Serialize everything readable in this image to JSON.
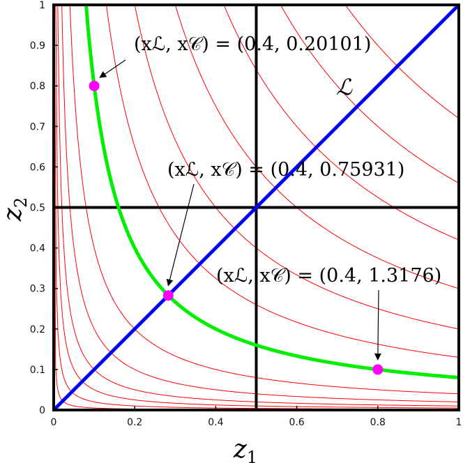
{
  "chart_data": {
    "type": "line",
    "title": "",
    "xlabel": "z",
    "xlabel_sub": "1",
    "ylabel": "z",
    "ylabel_sub": "2",
    "xlim": [
      0,
      1
    ],
    "ylim": [
      0,
      1
    ],
    "x_ticks": [
      "0",
      "0.2",
      "0.4",
      "0.6",
      "0.8",
      "1"
    ],
    "y_ticks": [
      "0",
      "0.1",
      "0.2",
      "0.3",
      "0.4",
      "0.5",
      "0.6",
      "0.7",
      "0.8",
      "0.9",
      "1"
    ],
    "grid": false,
    "contour_levels": [
      0.0005,
      0.002,
      0.005,
      0.01,
      0.02,
      0.04,
      0.08,
      0.13,
      0.2,
      0.3,
      0.42,
      0.56,
      0.72
    ],
    "highlight_curve_level": 0.08,
    "divider_lines": {
      "x": 0.5,
      "y": 0.5
    },
    "line_L": {
      "label": "ℒ",
      "from": [
        0,
        0
      ],
      "to": [
        1,
        1
      ]
    },
    "points": [
      {
        "x": 0.1,
        "y": 0.8
      },
      {
        "x": 0.2828,
        "y": 0.2828
      },
      {
        "x": 0.8,
        "y": 0.1
      }
    ],
    "annotations": [
      {
        "text": "(xℒ, x𝒞) = (0.4, 0.20101)",
        "point_index": 0
      },
      {
        "text": "(xℒ, x𝒞) = (0.4, 0.75931)",
        "point_index": 1
      },
      {
        "text": "(xℒ, x𝒞) = (0.4, 1.3176)",
        "point_index": 2
      }
    ],
    "colors": {
      "contours": "#ff0000",
      "highlight": "#00ee00",
      "line_L": "#0000ff",
      "points": "#ff00ff",
      "dividers": "#000000"
    }
  }
}
